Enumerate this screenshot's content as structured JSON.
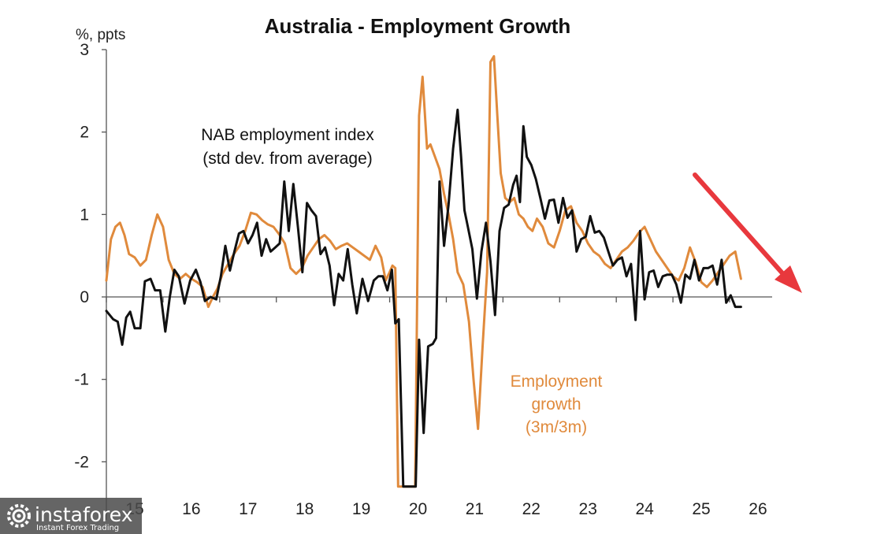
{
  "chart_data": {
    "type": "line",
    "title": "Australia - Employment Growth",
    "ylabel": "%, ppts",
    "xlabel": "",
    "xlim": [
      2015.0,
      2026.7
    ],
    "ylim": [
      -2.3,
      3.0
    ],
    "y_ticks": [
      "3",
      "2",
      "1",
      "0",
      "-1",
      "-2"
    ],
    "y_tick_values": [
      3,
      2,
      1,
      0,
      -1,
      -2
    ],
    "x_ticks": [
      "15",
      "16",
      "17",
      "18",
      "19",
      "20",
      "21",
      "22",
      "23",
      "24",
      "25",
      "26"
    ],
    "x_tick_values": [
      2015,
      2016,
      2017,
      2018,
      2019,
      2020,
      2021,
      2022,
      2023,
      2024,
      2025,
      2026
    ],
    "grid": false,
    "annotations": {
      "nab": [
        "NAB employment index",
        "(std dev. from average)"
      ],
      "emp": [
        "Employment",
        "growth",
        "(3m/3m)"
      ]
    },
    "series": [
      {
        "key": "nab",
        "color": "#111111",
        "x": [
          2015.0,
          2015.12,
          2015.2,
          2015.28,
          2015.35,
          2015.42,
          2015.5,
          2015.6,
          2015.68,
          2015.78,
          2015.86,
          2015.95,
          2016.04,
          2016.12,
          2016.2,
          2016.28,
          2016.38,
          2016.48,
          2016.58,
          2016.66,
          2016.74,
          2016.84,
          2016.94,
          2017.02,
          2017.1,
          2017.18,
          2017.26,
          2017.34,
          2017.42,
          2017.5,
          2017.58,
          2017.66,
          2017.74,
          2017.82,
          2017.9,
          2017.98,
          2018.06,
          2018.14,
          2018.22,
          2018.3,
          2018.38,
          2018.46,
          2018.54,
          2018.62,
          2018.7,
          2018.78,
          2018.86,
          2018.94,
          2019.02,
          2019.1,
          2019.18,
          2019.26,
          2019.34,
          2019.42,
          2019.52,
          2019.62,
          2019.72,
          2019.8,
          2019.88,
          2019.96,
          2020.04,
          2020.1,
          2020.16,
          2020.24,
          2020.32,
          2020.4,
          2020.46,
          2020.52,
          2020.6,
          2020.68,
          2020.76,
          2020.82,
          2020.88,
          2020.96,
          2021.04,
          2021.12,
          2021.2,
          2021.26,
          2021.32,
          2021.38,
          2021.46,
          2021.54,
          2021.62,
          2021.7,
          2021.78,
          2021.86,
          2021.94,
          2022.02,
          2022.1,
          2022.18,
          2022.24,
          2022.3,
          2022.36,
          2022.42,
          2022.5,
          2022.58,
          2022.66,
          2022.74,
          2022.82,
          2022.9,
          2022.98,
          2023.06,
          2023.14,
          2023.22,
          2023.3,
          2023.38,
          2023.46,
          2023.54,
          2023.62,
          2023.7,
          2023.78,
          2023.86,
          2023.94,
          2024.02,
          2024.1,
          2024.18,
          2024.26,
          2024.34,
          2024.42,
          2024.5,
          2024.58,
          2024.66,
          2024.74,
          2024.82,
          2024.9,
          2024.98,
          2025.06,
          2025.14,
          2025.22,
          2025.3,
          2025.38,
          2025.46,
          2025.54,
          2025.62,
          2025.7,
          2025.78,
          2025.86,
          2025.94,
          2026.02,
          2026.1,
          2026.2
        ],
        "y": [
          -0.17,
          -0.27,
          -0.3,
          -0.58,
          -0.25,
          -0.18,
          -0.38,
          -0.38,
          0.19,
          0.22,
          0.08,
          0.08,
          -0.42,
          0.0,
          0.33,
          0.25,
          -0.08,
          0.2,
          0.33,
          0.18,
          -0.05,
          0.0,
          -0.03,
          0.25,
          0.62,
          0.32,
          0.55,
          0.77,
          0.8,
          0.65,
          0.75,
          0.9,
          0.5,
          0.7,
          0.55,
          0.6,
          0.65,
          1.4,
          0.8,
          1.37,
          0.85,
          0.3,
          1.14,
          1.05,
          0.98,
          0.52,
          0.6,
          0.38,
          -0.1,
          0.28,
          0.2,
          0.58,
          0.15,
          -0.2,
          0.22,
          -0.05,
          0.2,
          0.25,
          0.25,
          0.08,
          0.33,
          -0.32,
          -0.27,
          -2.3,
          -2.3,
          -2.3,
          -2.3,
          -0.52,
          -1.65,
          -0.6,
          -0.57,
          -0.5,
          1.4,
          0.62,
          1.12,
          1.8,
          2.27,
          1.7,
          1.05,
          0.85,
          0.58,
          -0.02,
          0.55,
          0.9,
          0.43,
          -0.22,
          0.8,
          1.08,
          1.12,
          1.36,
          1.47,
          1.15,
          2.07,
          1.7,
          1.6,
          1.43,
          1.2,
          0.95,
          1.17,
          1.18,
          0.9,
          1.2,
          0.96,
          1.05,
          0.55,
          0.7,
          0.73,
          0.98,
          0.78,
          0.8,
          0.72,
          0.55,
          0.38,
          0.45,
          0.48,
          0.25,
          0.4,
          -0.28,
          0.8,
          -0.03,
          0.3,
          0.32,
          0.12,
          0.25,
          0.27,
          0.27,
          0.15,
          -0.07,
          0.27,
          0.22,
          0.45,
          0.2,
          0.35,
          0.35,
          0.38,
          0.15,
          0.45,
          -0.07,
          0.02,
          -0.12,
          -0.12
        ]
      },
      {
        "key": "emp",
        "color": "#E08A3C",
        "x": [
          2015.0,
          2015.08,
          2015.16,
          2015.24,
          2015.32,
          2015.4,
          2015.5,
          2015.6,
          2015.7,
          2015.8,
          2015.9,
          2016.0,
          2016.1,
          2016.2,
          2016.3,
          2016.4,
          2016.5,
          2016.6,
          2016.7,
          2016.8,
          2016.88,
          2016.96,
          2017.05,
          2017.15,
          2017.25,
          2017.35,
          2017.45,
          2017.55,
          2017.65,
          2017.75,
          2017.85,
          2017.95,
          2018.05,
          2018.15,
          2018.25,
          2018.35,
          2018.45,
          2018.55,
          2018.65,
          2018.75,
          2018.85,
          2018.95,
          2019.05,
          2019.15,
          2019.25,
          2019.35,
          2019.45,
          2019.55,
          2019.65,
          2019.75,
          2019.85,
          2019.93,
          2020.0,
          2020.05,
          2020.1,
          2020.15,
          2020.22,
          2020.3,
          2020.38,
          2020.45,
          2020.52,
          2020.58,
          2020.66,
          2020.72,
          2020.8,
          2020.88,
          2020.96,
          2021.04,
          2021.12,
          2021.2,
          2021.3,
          2021.4,
          2021.48,
          2021.56,
          2021.64,
          2021.72,
          2021.78,
          2021.84,
          2021.9,
          2021.96,
          2022.04,
          2022.12,
          2022.2,
          2022.28,
          2022.36,
          2022.44,
          2022.52,
          2022.6,
          2022.7,
          2022.8,
          2022.9,
          2023.0,
          2023.1,
          2023.2,
          2023.3,
          2023.4,
          2023.5,
          2023.6,
          2023.7,
          2023.8,
          2023.9,
          2024.0,
          2024.1,
          2024.2,
          2024.3,
          2024.4,
          2024.5,
          2024.6,
          2024.7,
          2024.8,
          2024.9,
          2025.0,
          2025.1,
          2025.2,
          2025.3,
          2025.4,
          2025.5,
          2025.6,
          2025.7,
          2025.8,
          2025.9,
          2026.0,
          2026.1,
          2026.2
        ],
        "y": [
          0.2,
          0.7,
          0.85,
          0.9,
          0.75,
          0.52,
          0.48,
          0.38,
          0.45,
          0.75,
          1.0,
          0.85,
          0.45,
          0.28,
          0.22,
          0.28,
          0.22,
          0.18,
          0.12,
          -0.12,
          0.0,
          0.1,
          0.28,
          0.4,
          0.52,
          0.62,
          0.8,
          1.02,
          1.0,
          0.93,
          0.88,
          0.85,
          0.76,
          0.65,
          0.35,
          0.28,
          0.35,
          0.5,
          0.6,
          0.7,
          0.75,
          0.68,
          0.58,
          0.62,
          0.65,
          0.6,
          0.55,
          0.5,
          0.45,
          0.62,
          0.48,
          0.2,
          0.3,
          0.38,
          0.35,
          -2.3,
          -2.3,
          -2.3,
          -2.3,
          -2.3,
          2.2,
          2.67,
          1.8,
          1.85,
          1.7,
          1.55,
          1.25,
          1.0,
          0.7,
          0.3,
          0.15,
          -0.3,
          -1.0,
          -1.6,
          -0.6,
          0.3,
          2.85,
          2.92,
          2.2,
          1.5,
          1.2,
          1.15,
          1.2,
          1.0,
          0.95,
          0.85,
          0.8,
          0.95,
          0.85,
          0.65,
          0.6,
          0.8,
          1.05,
          1.1,
          0.9,
          0.8,
          0.65,
          0.55,
          0.5,
          0.4,
          0.35,
          0.45,
          0.55,
          0.6,
          0.68,
          0.78,
          0.85,
          0.7,
          0.55,
          0.45,
          0.35,
          0.25,
          0.2,
          0.35,
          0.6,
          0.42,
          0.18,
          0.12,
          0.2,
          0.3,
          0.4,
          0.5,
          0.55,
          0.22
        ]
      }
    ]
  },
  "watermark": {
    "brand": "instaforex",
    "tagline": "Instant Forex Trading"
  },
  "arrow_color": "#E8383D"
}
